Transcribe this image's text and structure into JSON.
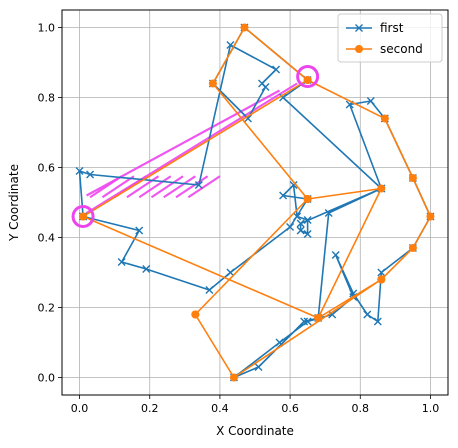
{
  "chart_data": {
    "type": "line",
    "title": "",
    "xlabel": "X Coordinate",
    "ylabel": "Y Coordinate",
    "xlim": [
      -0.05,
      1.05
    ],
    "ylim": [
      -0.05,
      1.05
    ],
    "xticks": [
      0.0,
      0.2,
      0.4,
      0.6,
      0.8,
      1.0
    ],
    "yticks": [
      0.0,
      0.2,
      0.4,
      0.6,
      0.8,
      1.0
    ],
    "xtick_labels": [
      "0.0",
      "0.2",
      "0.4",
      "0.6",
      "0.8",
      "1.0"
    ],
    "ytick_labels": [
      "0.0",
      "0.2",
      "0.4",
      "0.6",
      "0.8",
      "1.0"
    ],
    "grid": true,
    "legend_position": "top-right",
    "series": [
      {
        "name": "first",
        "marker": "x",
        "color": "#1f77b4",
        "points": [
          [
            0.01,
            0.46
          ],
          [
            0.0,
            0.59
          ],
          [
            0.03,
            0.58
          ],
          [
            0.34,
            0.55
          ],
          [
            0.43,
            0.95
          ],
          [
            0.56,
            0.88
          ],
          [
            0.52,
            0.84
          ],
          [
            0.53,
            0.83
          ],
          [
            0.48,
            0.74
          ],
          [
            0.38,
            0.84
          ],
          [
            0.47,
            1.0
          ],
          [
            0.65,
            0.85
          ],
          [
            0.58,
            0.8
          ],
          [
            0.86,
            0.54
          ],
          [
            0.77,
            0.78
          ],
          [
            0.83,
            0.79
          ],
          [
            0.87,
            0.74
          ],
          [
            0.95,
            0.57
          ],
          [
            1.0,
            0.46
          ],
          [
            0.95,
            0.37
          ],
          [
            0.86,
            0.3
          ],
          [
            0.85,
            0.16
          ],
          [
            0.82,
            0.18
          ],
          [
            0.78,
            0.24
          ],
          [
            0.73,
            0.35
          ],
          [
            0.78,
            0.23
          ],
          [
            0.72,
            0.18
          ],
          [
            0.65,
            0.16
          ],
          [
            0.57,
            0.1
          ],
          [
            0.44,
            0.0
          ],
          [
            0.51,
            0.03
          ],
          [
            0.64,
            0.16
          ],
          [
            0.68,
            0.17
          ],
          [
            0.71,
            0.47
          ],
          [
            0.86,
            0.54
          ],
          [
            0.63,
            0.44
          ],
          [
            0.63,
            0.42
          ],
          [
            0.65,
            0.41
          ],
          [
            0.65,
            0.45
          ],
          [
            0.62,
            0.46
          ],
          [
            0.61,
            0.55
          ],
          [
            0.58,
            0.52
          ],
          [
            0.65,
            0.51
          ],
          [
            0.6,
            0.43
          ],
          [
            0.43,
            0.3
          ],
          [
            0.37,
            0.25
          ],
          [
            0.19,
            0.31
          ],
          [
            0.12,
            0.33
          ],
          [
            0.17,
            0.42
          ],
          [
            0.01,
            0.46
          ]
        ]
      },
      {
        "name": "second",
        "marker": "o",
        "color": "#ff7f0e",
        "points": [
          [
            0.01,
            0.46
          ],
          [
            0.65,
            0.85
          ],
          [
            0.87,
            0.74
          ],
          [
            0.95,
            0.57
          ],
          [
            1.0,
            0.46
          ],
          [
            0.95,
            0.37
          ],
          [
            0.86,
            0.28
          ],
          [
            0.68,
            0.17
          ],
          [
            0.86,
            0.54
          ],
          [
            0.65,
            0.51
          ],
          [
            0.33,
            0.18
          ],
          [
            0.44,
            0.0
          ],
          [
            0.86,
            0.28
          ],
          [
            0.68,
            0.17
          ],
          [
            0.01,
            0.46
          ],
          [
            0.65,
            0.85
          ],
          [
            0.47,
            1.0
          ],
          [
            0.38,
            0.84
          ],
          [
            0.65,
            0.51
          ],
          [
            0.33,
            0.18
          ]
        ]
      }
    ],
    "highlight_circles": [
      {
        "x": 0.01,
        "y": 0.46
      },
      {
        "x": 0.65,
        "y": 0.86
      }
    ],
    "highlight_color": "#ee44ee"
  }
}
